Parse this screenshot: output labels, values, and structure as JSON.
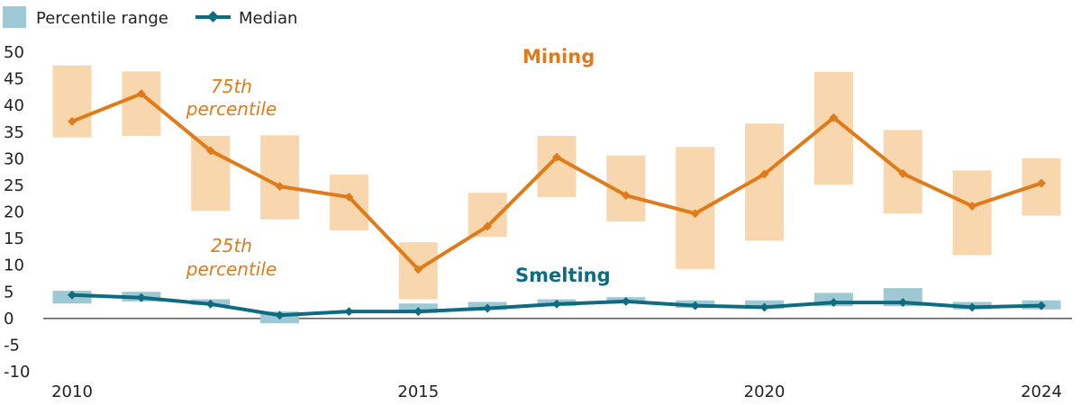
{
  "chart_data": {
    "type": "line",
    "x": [
      2010,
      2011,
      2012,
      2013,
      2014,
      2015,
      2016,
      2017,
      2018,
      2019,
      2020,
      2021,
      2022,
      2023,
      2024
    ],
    "x_tick_labels": [
      "2010",
      "2015",
      "2020",
      "2024"
    ],
    "ylim": [
      -10,
      50
    ],
    "y_ticks": [
      -10,
      -5,
      0,
      5,
      10,
      15,
      20,
      25,
      30,
      35,
      40,
      45,
      50
    ],
    "legend": {
      "placement": "top-left",
      "items": [
        {
          "label": "Percentile range",
          "color": "#9ec8d4",
          "shape": "square"
        },
        {
          "label": "Median",
          "color": "#0e6b80",
          "shape": "line-diamond"
        }
      ]
    },
    "annotations": {
      "mining": "Mining",
      "smelting": "Smelting",
      "p75_line1": "75th",
      "p75_line2": "percentile",
      "p25_line1": "25th",
      "p25_line2": "percentile"
    },
    "series": [
      {
        "group": "Mining",
        "color": "#e07b1a",
        "range_color": "#f9d7ae",
        "median": [
          37,
          42.2,
          31.5,
          24.8,
          22.8,
          9.2,
          17.3,
          30.3,
          23.1,
          19.7,
          27.1,
          37.7,
          27.2,
          21.1,
          25.4
        ],
        "p25": [
          34,
          34.3,
          20.2,
          18.6,
          16.5,
          3.6,
          15.3,
          22.8,
          18.2,
          9.3,
          14.6,
          25.1,
          19.7,
          11.9,
          19.3
        ],
        "p75": [
          47.5,
          46.4,
          34.3,
          34.4,
          27,
          14.3,
          23.6,
          34.3,
          30.6,
          32.2,
          36.6,
          46.3,
          35.4,
          27.8,
          30.1
        ]
      },
      {
        "group": "Smelting",
        "color": "#0e6b80",
        "range_color": "#9ec8d4",
        "median": [
          4.4,
          3.9,
          2.7,
          0.6,
          1.3,
          1.3,
          1.9,
          2.7,
          3.2,
          2.4,
          2.1,
          3,
          3,
          2.1,
          2.4
        ],
        "p25": [
          2.8,
          3.2,
          2.5,
          -0.9,
          1,
          1,
          1.6,
          2.3,
          2.8,
          2,
          1.8,
          2.3,
          2.3,
          1.7,
          1.7
        ],
        "p75": [
          5.2,
          5,
          3.6,
          1.3,
          1.5,
          2.8,
          3.1,
          3.6,
          4,
          3.4,
          3.4,
          4.8,
          5.7,
          3.1,
          3.4
        ]
      }
    ]
  }
}
